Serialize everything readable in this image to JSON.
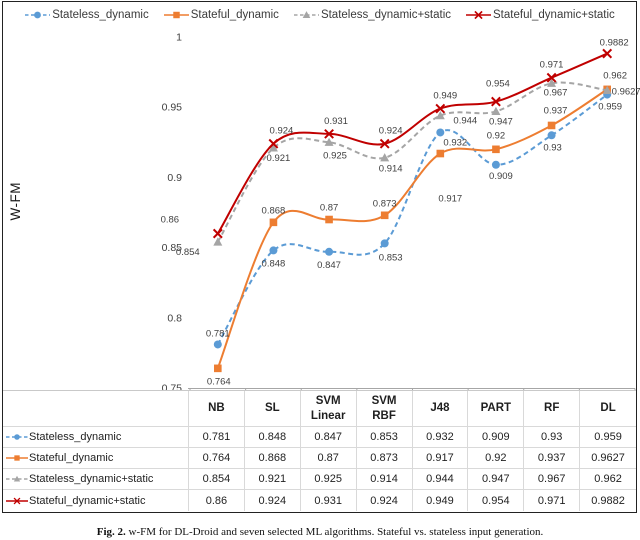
{
  "figure": {
    "ylabel": "W-FM",
    "caption_prefix": "Fig. 2.",
    "caption_text": "w-FM for DL-Droid and seven selected ML algorithms. Stateful vs. stateless input generation."
  },
  "chart_data": {
    "type": "line",
    "title": "",
    "xlabel": "",
    "ylabel": "W-FM",
    "categories": [
      "NB",
      "SL",
      "SVM Linear",
      "SVM RBF",
      "J48",
      "PART",
      "RF",
      "DL"
    ],
    "series": [
      {
        "name": "Stateless_dynamic",
        "color": "#5B9BD5",
        "marker": "circle",
        "dashed": true,
        "values": [
          0.781,
          0.848,
          0.847,
          0.853,
          0.932,
          0.909,
          0.93,
          0.959
        ]
      },
      {
        "name": "Stateful_dynamic",
        "color": "#ED7D31",
        "marker": "square",
        "dashed": false,
        "values": [
          0.764,
          0.868,
          0.87,
          0.873,
          0.917,
          0.92,
          0.937,
          0.9627
        ]
      },
      {
        "name": "Stateless_dynamic+static",
        "color": "#A5A5A5",
        "marker": "triangle",
        "dashed": true,
        "values": [
          0.854,
          0.921,
          0.925,
          0.914,
          0.944,
          0.947,
          0.967,
          0.962
        ]
      },
      {
        "name": "Stateful_dynamic+static",
        "color": "#C00000",
        "marker": "x",
        "dashed": false,
        "values": [
          0.86,
          0.924,
          0.931,
          0.924,
          0.949,
          0.954,
          0.971,
          0.9882
        ]
      }
    ],
    "ylim": [
      0.75,
      1
    ],
    "yticks": [
      "1",
      "0.95",
      "0.9",
      "0.85",
      "0.8",
      "0.75"
    ],
    "grid": false,
    "legend_position": "top",
    "data_labels": true
  }
}
